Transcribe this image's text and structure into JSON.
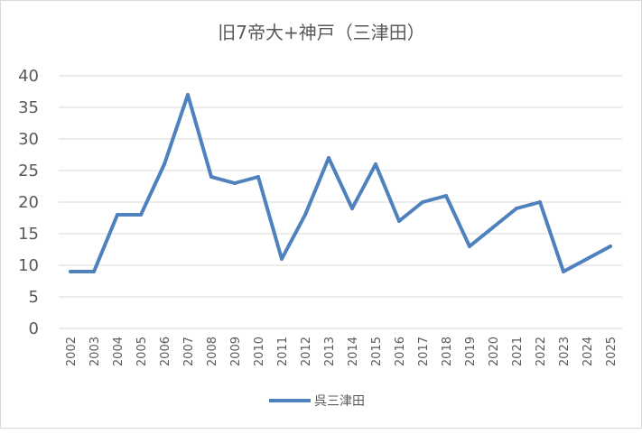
{
  "chart_data": {
    "type": "line",
    "title": "旧7帝大+神戸（三津田）",
    "xlabel": "",
    "ylabel": "",
    "ylim": [
      0,
      40
    ],
    "yticks": [
      0,
      5,
      10,
      15,
      20,
      25,
      30,
      35,
      40
    ],
    "grid": "horizontal",
    "legend_position": "bottom",
    "categories": [
      "2002",
      "2003",
      "2004",
      "2005",
      "2006",
      "2007",
      "2008",
      "2009",
      "2010",
      "2011",
      "2012",
      "2013",
      "2014",
      "2015",
      "2016",
      "2017",
      "2018",
      "2019",
      "2020",
      "2021",
      "2022",
      "2023",
      "2024",
      "2025"
    ],
    "series": [
      {
        "name": "呉三津田",
        "color": "#4f81bd",
        "values": [
          9,
          9,
          18,
          18,
          26,
          37,
          24,
          23,
          24,
          11,
          18,
          27,
          19,
          26,
          17,
          20,
          21,
          13,
          16,
          19,
          20,
          9,
          11,
          13
        ]
      }
    ]
  }
}
